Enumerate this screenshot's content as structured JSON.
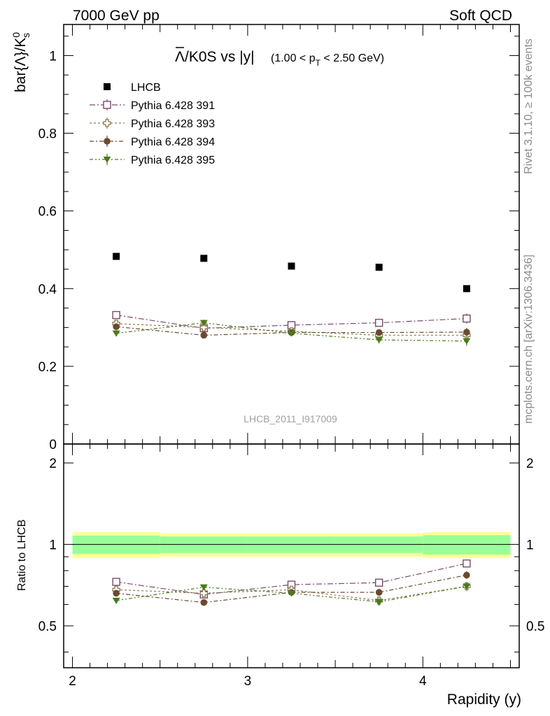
{
  "header": {
    "left": "7000 GeV pp",
    "right": "Soft QCD"
  },
  "side_text": {
    "rivet": "Rivet 3.1.10, ≥ 100k events",
    "mcplots": "mcplots.cern.ch [arXiv:1306.3436]"
  },
  "analysis_id": "LHCB_2011_I917009",
  "chart_data": [
    {
      "type": "scatter",
      "title_main": "Λ/K0S vs |y|",
      "title_lambda_bar": "Λ",
      "title_rest": "/K0S vs |y|",
      "title_cut_prefix": "(1.00 < p",
      "title_cut_sub": "T",
      "title_cut_suffix": " < 2.50 GeV)",
      "ylabel": "bar{Λ}/K",
      "ylabel_sup": "0",
      "ylabel_sub": "s",
      "ylim": [
        0,
        1.08
      ],
      "yticks": [
        0,
        0.2,
        0.4,
        0.6,
        0.8,
        1
      ],
      "ytick_labels": [
        "0",
        "0.2",
        "0.4",
        "0.6",
        "0.8",
        "1"
      ],
      "x": [
        2.25,
        2.75,
        3.25,
        3.75,
        4.25
      ],
      "xlim": [
        1.95,
        4.55
      ],
      "legend_position": "top-left",
      "series": [
        {
          "name": "LHCB",
          "values": [
            0.483,
            0.478,
            0.458,
            0.455,
            0.4
          ],
          "errors": [
            0.005,
            0.005,
            0.005,
            0.005,
            0.005
          ],
          "color": "#000000",
          "marker": "filled-square"
        },
        {
          "name": "Pythia 6.428 391",
          "values": [
            0.332,
            0.298,
            0.306,
            0.312,
            0.323
          ],
          "errors": [
            0.008,
            0.008,
            0.007,
            0.009,
            0.013
          ],
          "color": "#7a4a6a",
          "marker": "open-square"
        },
        {
          "name": "Pythia 6.428 393",
          "values": [
            0.31,
            0.3,
            0.29,
            0.28,
            0.28
          ],
          "errors": [
            0.008,
            0.008,
            0.007,
            0.009,
            0.012
          ],
          "color": "#8a7a50",
          "marker": "open-cross"
        },
        {
          "name": "Pythia 6.428 394",
          "values": [
            0.302,
            0.28,
            0.287,
            0.287,
            0.288
          ],
          "errors": [
            0.008,
            0.008,
            0.007,
            0.008,
            0.011
          ],
          "color": "#6b4a2e",
          "marker": "filled-circle"
        },
        {
          "name": "Pythia 6.428 395",
          "values": [
            0.285,
            0.312,
            0.285,
            0.268,
            0.265
          ],
          "errors": [
            0.008,
            0.008,
            0.007,
            0.009,
            0.012
          ],
          "color": "#4a7a1a",
          "marker": "filled-triangle-down"
        }
      ]
    },
    {
      "type": "scatter",
      "ylabel": "Ratio to LHCB",
      "xlabel": "Rapidity (y)",
      "ylim": [
        0.35,
        2.35
      ],
      "yticks": [
        0.5,
        1,
        2
      ],
      "ytick_labels": [
        "0.5",
        "1",
        "2"
      ],
      "x": [
        2.25,
        2.75,
        3.25,
        3.75,
        4.25
      ],
      "xlim": [
        1.95,
        4.55
      ],
      "xticks": [
        2,
        3,
        4
      ],
      "xtick_labels": [
        "2",
        "3",
        "4"
      ],
      "bands": {
        "bins": [
          [
            2.0,
            2.5
          ],
          [
            2.5,
            3.0
          ],
          [
            3.0,
            3.5
          ],
          [
            3.5,
            4.0
          ],
          [
            4.0,
            4.5
          ]
        ],
        "inner": [
          0.078,
          0.07,
          0.07,
          0.07,
          0.082
        ],
        "outer": [
          0.11,
          0.1,
          0.1,
          0.1,
          0.11
        ],
        "inner_color": "#99ff99",
        "outer_color": "#ffff99"
      },
      "series": [
        {
          "name": "Pythia 6.428 391",
          "values": [
            0.727,
            0.653,
            0.71,
            0.722,
            0.85
          ],
          "errors": [
            0.015,
            0.015,
            0.015,
            0.02,
            0.025
          ],
          "color": "#7a4a6a",
          "marker": "open-square"
        },
        {
          "name": "Pythia 6.428 393",
          "values": [
            0.68,
            0.66,
            0.68,
            0.62,
            0.7
          ],
          "errors": [
            0.015,
            0.015,
            0.015,
            0.02,
            0.025
          ],
          "color": "#8a7a50",
          "marker": "open-cross"
        },
        {
          "name": "Pythia 6.428 394",
          "values": [
            0.66,
            0.61,
            0.665,
            0.665,
            0.77
          ],
          "errors": [
            0.015,
            0.015,
            0.015,
            0.02,
            0.025
          ],
          "color": "#6b4a2e",
          "marker": "filled-circle"
        },
        {
          "name": "Pythia 6.428 395",
          "values": [
            0.62,
            0.695,
            0.66,
            0.613,
            0.7
          ],
          "errors": [
            0.015,
            0.015,
            0.015,
            0.02,
            0.025
          ],
          "color": "#4a7a1a",
          "marker": "filled-triangle-down"
        }
      ]
    }
  ]
}
